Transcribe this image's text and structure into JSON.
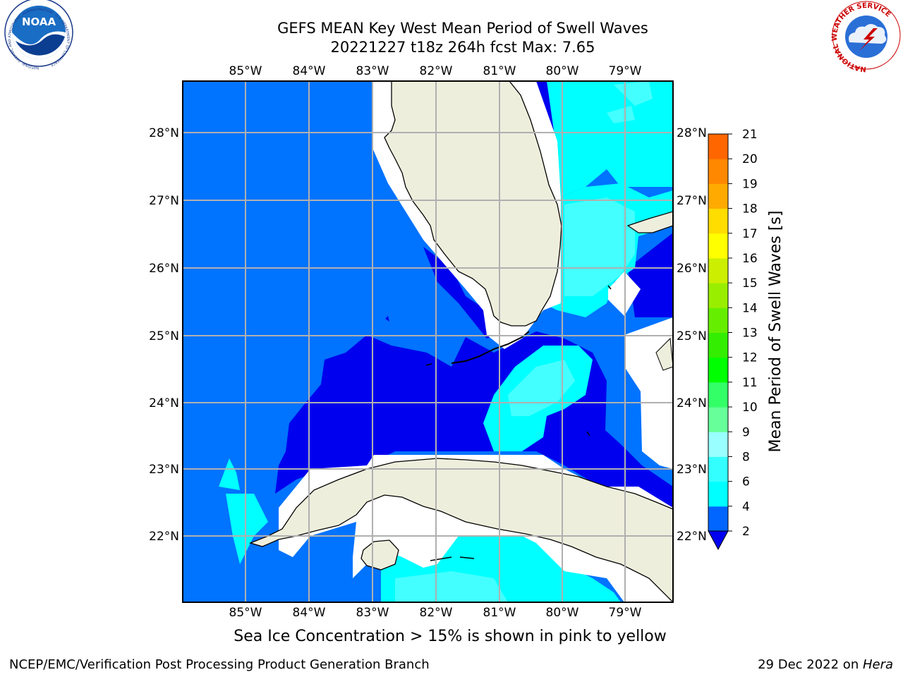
{
  "title": {
    "line1": "GEFS MEAN Key West Mean Period of Swell Waves",
    "line2": "20221227 t18z 264h fcst   Max: 7.65"
  },
  "longitude_labels": [
    "85°W",
    "84°W",
    "83°W",
    "82°W",
    "81°W",
    "80°W",
    "79°W"
  ],
  "latitude_labels": [
    "28°N",
    "27°N",
    "26°N",
    "25°N",
    "24°N",
    "23°N",
    "22°N"
  ],
  "colorbar": {
    "label": "Mean Period of Swell Waves [s]",
    "ticks": [
      "2",
      "4",
      "6",
      "8",
      "9",
      "10",
      "11",
      "12",
      "13",
      "14",
      "15",
      "16",
      "17",
      "18",
      "19",
      "20",
      "21"
    ],
    "colors": [
      "#0066ff",
      "#00ffff",
      "#33ffff",
      "#99ffff",
      "#66ff99",
      "#33ff66",
      "#00ff00",
      "#33ee00",
      "#66ee00",
      "#99ee00",
      "#ccee00",
      "#ffff00",
      "#ffdd00",
      "#ffaa00",
      "#ff8800",
      "#ff6600",
      "#ff3300",
      "#ff0000"
    ]
  },
  "ice_note": "Sea Ice Concentration > 15% is shown in pink to yellow",
  "footer": {
    "left": "NCEP/EMC/Verification Post Processing Product Generation Branch",
    "right_date": "29 Dec 2022 on ",
    "right_host": "Hera"
  },
  "logos": {
    "noaa": {
      "text": "NOAA",
      "ring_text": "NATIONAL OCEANIC AND ATMOSPHERIC ADMINISTRATION · U.S. DEPARTMENT OF COMMERCE"
    },
    "nws": {
      "ring_text": "NATIONAL WEATHER SERVICE"
    }
  },
  "map_colors": {
    "band_2_4": "#0073ff",
    "band_below_2": "#0000ee",
    "band_4_6": "#00ffff",
    "band_6_8": "#44ffff",
    "land": "#eeeedd",
    "nodata": "#ffffff",
    "grid": "#b0b0b0"
  }
}
